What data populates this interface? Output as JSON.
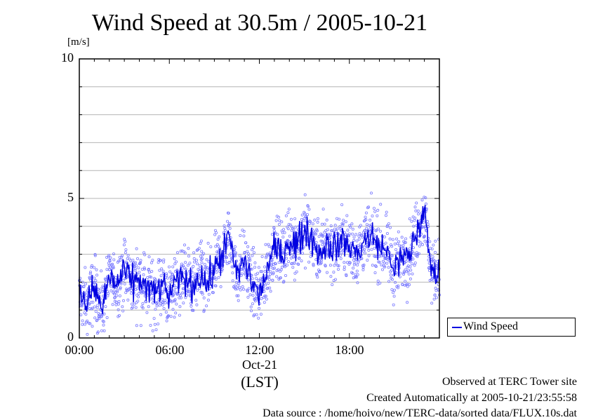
{
  "chart_data": {
    "type": "scatter",
    "title": "Wind Speed at 30.5m / 2005-10-21",
    "ylabel_unit": "[m/s]",
    "ylim": [
      0,
      10
    ],
    "yticks": [
      "0",
      "5",
      "10"
    ],
    "xlim_hours": [
      0,
      24
    ],
    "xticks": [
      {
        "hour": 0,
        "label": "00:00"
      },
      {
        "hour": 6,
        "label": "06:00"
      },
      {
        "hour": 12,
        "label": "12:00"
      },
      {
        "hour": 18,
        "label": "18:00"
      }
    ],
    "date_label": "Oct-21",
    "timezone_label": "(LST)",
    "grid": {
      "horizontal": true,
      "step": 1
    },
    "legend": {
      "position": "bottom-right-outside",
      "entries": [
        "Wind Speed"
      ]
    },
    "colors": {
      "line": "#0000e0",
      "points": "#7b7bff"
    },
    "series": [
      {
        "name": "Wind Speed",
        "hours": [
          0,
          0.5,
          1,
          1.5,
          2,
          2.5,
          3,
          3.5,
          4,
          4.5,
          5,
          5.5,
          6,
          6.5,
          7,
          7.5,
          8,
          8.5,
          9,
          9.5,
          10,
          10.5,
          11,
          11.5,
          12,
          12.5,
          13,
          13.5,
          14,
          14.5,
          15,
          15.5,
          16,
          16.5,
          17,
          17.5,
          18,
          18.5,
          19,
          19.5,
          20,
          20.5,
          21,
          21.5,
          22,
          22.5,
          23,
          23.5,
          24
        ],
        "values": [
          1.5,
          1.2,
          1.8,
          1.0,
          2.2,
          1.9,
          2.4,
          2.0,
          2.1,
          1.8,
          1.6,
          1.9,
          1.5,
          2.0,
          2.2,
          1.8,
          2.3,
          1.9,
          2.4,
          3.0,
          3.6,
          2.2,
          2.8,
          2.0,
          1.5,
          2.4,
          3.2,
          3.0,
          3.5,
          3.3,
          3.9,
          3.6,
          3.0,
          3.4,
          3.2,
          3.5,
          3.3,
          3.0,
          3.5,
          3.6,
          3.3,
          3.1,
          2.5,
          2.8,
          3.0,
          3.8,
          4.5,
          2.3,
          2.5
        ]
      }
    ]
  },
  "footer": {
    "line1": "Observed at TERC Tower site",
    "line2": "Created Automatically at 2005-10-21/23:55:58",
    "line3": "Data source : /home/hoivo/new/TERC-data/sorted  data/FLUX.10s.dat"
  }
}
